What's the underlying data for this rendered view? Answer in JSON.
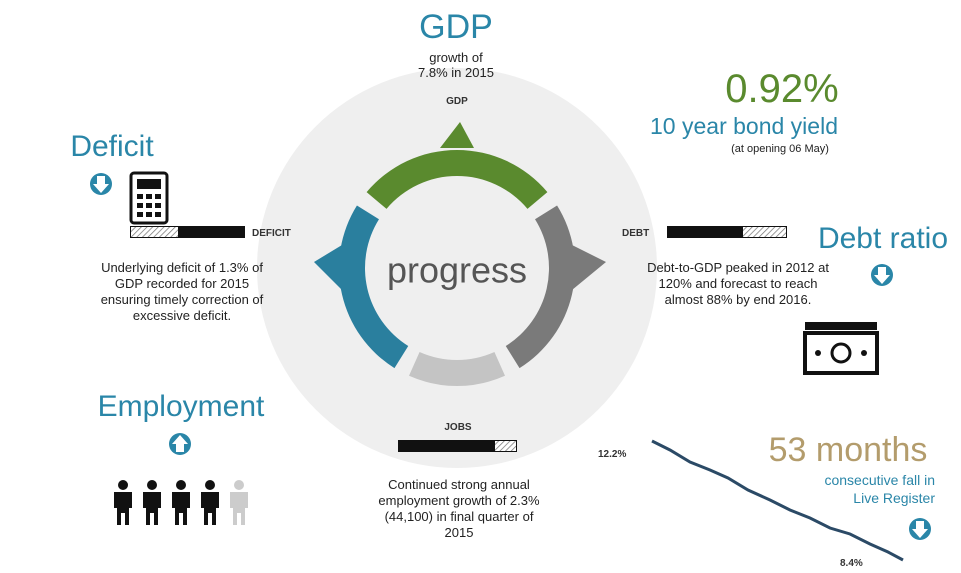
{
  "gdp": {
    "title": "GDP",
    "lines": [
      "growth of",
      "7.8% in 2015"
    ]
  },
  "ring": {
    "labels": {
      "gdp": "GDP",
      "deficit": "DEFICIT",
      "debt": "DEBT",
      "jobs": "JOBS"
    },
    "center": "progress"
  },
  "bond": {
    "value": "0.92%",
    "label": "10 year bond yield",
    "note": "(at opening 06 May)"
  },
  "deficit": {
    "title": "Deficit",
    "lines": [
      "Underlying deficit of 1.3% of",
      "GDP recorded for 2015",
      "ensuring timely correction of",
      "excessive deficit."
    ]
  },
  "debt": {
    "title": "Debt ratio",
    "lines": [
      "Debt-to-GDP peaked in 2012 at",
      "120% and forecast to reach",
      "almost 88% by end 2016."
    ]
  },
  "employment": {
    "title": "Employment",
    "lines": [
      "Continued strong annual",
      "employment growth of 2.3%",
      "(44,100) in final quarter of",
      "2015"
    ]
  },
  "register": {
    "value": "53 months",
    "lines": [
      "consecutive fall in",
      "Live Register"
    ],
    "start_label": "12.2%",
    "end_label": "8.4%"
  }
}
